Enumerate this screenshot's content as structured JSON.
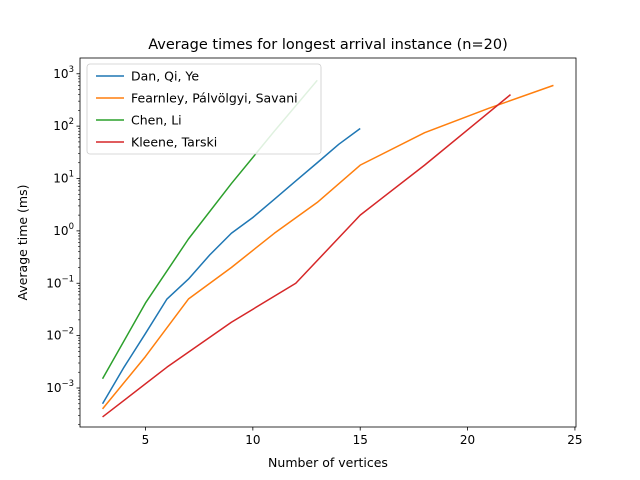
{
  "chart_data": {
    "type": "line",
    "title": "Average times for longest arrival instance (n=20)",
    "xlabel": "Number of vertices",
    "ylabel": "Average time (ms)",
    "xlim": [
      1.95,
      25.05
    ],
    "ylim": [
      0.00018,
      2000
    ],
    "yscale": "log",
    "x_ticks": [
      5,
      10,
      15,
      20,
      25
    ],
    "y_ticks": [
      0.001,
      0.01,
      0.1,
      1,
      10,
      100,
      1000
    ],
    "y_tick_labels": [
      "10^-3",
      "10^-2",
      "10^-1",
      "10^0",
      "10^1",
      "10^2",
      "10^3"
    ],
    "grid": false,
    "legend_position": "top-left",
    "series": [
      {
        "name": "Dan, Qi, Ye",
        "color": "#1f77b4",
        "x": [
          3,
          4,
          5,
          6,
          7,
          8,
          9,
          10,
          11,
          12,
          13,
          14,
          15
        ],
        "y": [
          0.0005,
          0.0025,
          0.011,
          0.05,
          0.12,
          0.35,
          0.9,
          1.8,
          4,
          9,
          20,
          45,
          90
        ]
      },
      {
        "name": "Fearnley, Pálvölgyi, Savani",
        "color": "#ff7f0e",
        "x": [
          3,
          5,
          7,
          9,
          11,
          13,
          15,
          18,
          21,
          24
        ],
        "y": [
          0.0004,
          0.004,
          0.05,
          0.2,
          0.9,
          3.5,
          18,
          75,
          220,
          600
        ]
      },
      {
        "name": "Chen, Li",
        "color": "#2ca02c",
        "x": [
          3,
          5,
          7,
          9,
          11,
          13
        ],
        "y": [
          0.0015,
          0.042,
          0.7,
          8,
          80,
          750
        ]
      },
      {
        "name": "Kleene, Tarski",
        "color": "#d62728",
        "x": [
          3,
          6,
          9,
          12,
          15,
          18,
          22
        ],
        "y": [
          0.00028,
          0.0025,
          0.018,
          0.1,
          2,
          18,
          400
        ]
      }
    ]
  }
}
